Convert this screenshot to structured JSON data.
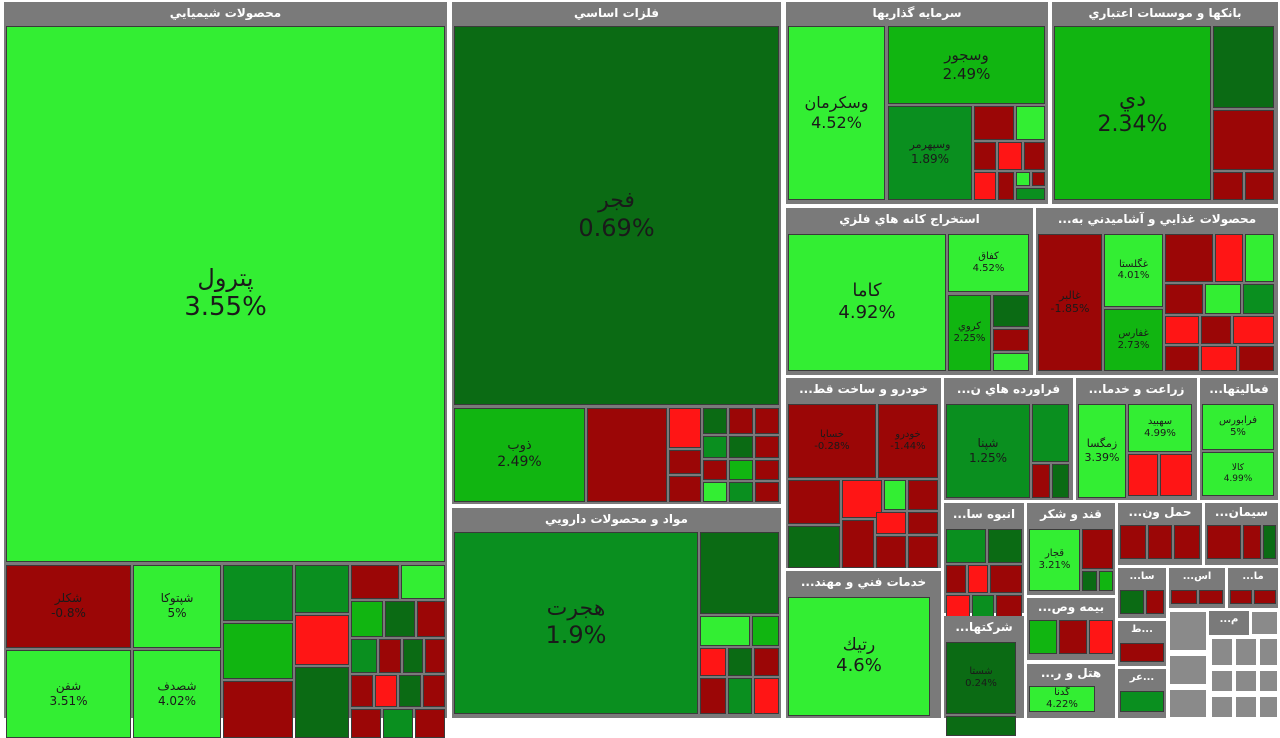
{
  "colors": {
    "strong_up": "#33ee33",
    "up": "#11b511",
    "mild_up": "#0a8f1f",
    "flat_up": "#0b6b14",
    "down": "#9b0606",
    "strong_down": "#ff1515",
    "sector_header": "#7a7a7a"
  },
  "chart_data": {
    "type": "treemap",
    "metric": "percent change",
    "sectors": [
      {
        "id": "s1",
        "name": "محصولات شيميايي",
        "stocks": [
          {
            "symbol": "پترول",
            "change": 3.55
          },
          {
            "symbol": "شكلر",
            "change": -0.8
          },
          {
            "symbol": "شپتوكا",
            "change": 5
          },
          {
            "symbol": "شفن",
            "change": 3.51
          },
          {
            "symbol": "شصدف",
            "change": 4.02
          }
        ]
      },
      {
        "id": "s2",
        "name": "فلزات اساسي",
        "stocks": [
          {
            "symbol": "فجر",
            "change": 0.69
          },
          {
            "symbol": "ذوب",
            "change": 2.49
          }
        ]
      },
      {
        "id": "s3",
        "name": "مواد و محصولات دارويي",
        "stocks": [
          {
            "symbol": "هجرت",
            "change": 1.9
          }
        ]
      },
      {
        "id": "s4",
        "name": "سرمايه گذاريها",
        "stocks": [
          {
            "symbol": "وسكرمان",
            "change": 4.52
          },
          {
            "symbol": "وسجور",
            "change": 2.49
          },
          {
            "symbol": "وسپهرمر",
            "change": 1.89
          }
        ]
      },
      {
        "id": "s5",
        "name": "بانكها و موسسات اعتباري",
        "stocks": [
          {
            "symbol": "دي",
            "change": 2.34
          }
        ]
      },
      {
        "id": "s6",
        "name": "استخراج كانه هاي فلزي",
        "stocks": [
          {
            "symbol": "كاما",
            "change": 4.92
          },
          {
            "symbol": "كفاق",
            "change": 4.52
          },
          {
            "symbol": "كروي",
            "change": 2.25
          }
        ]
      },
      {
        "id": "s7",
        "name": "محصولات غذايي و آشاميدني به...",
        "stocks": [
          {
            "symbol": "غالبر",
            "change": -1.85
          },
          {
            "symbol": "غگلستا",
            "change": 4.01
          },
          {
            "symbol": "غفارس",
            "change": 2.73
          }
        ]
      },
      {
        "id": "s8",
        "name": "خودرو و ساخت قط...",
        "stocks": [
          {
            "symbol": "خساپا",
            "change": -0.28
          },
          {
            "symbol": "خودرو",
            "change": -1.44
          }
        ]
      },
      {
        "id": "s9",
        "name": "فراورده هاي ن...",
        "stocks": [
          {
            "symbol": "شپنا",
            "change": 1.25
          }
        ]
      },
      {
        "id": "s10",
        "name": "زراعت و خدما...",
        "stocks": [
          {
            "symbol": "زمگسا",
            "change": 3.39
          },
          {
            "symbol": "سهبيد",
            "change": 4.99
          }
        ]
      },
      {
        "id": "s11",
        "name": "فعاليتها...",
        "stocks": [
          {
            "symbol": "فرابورس",
            "change": 5
          },
          {
            "symbol": "كالا",
            "change": 4.99
          }
        ]
      },
      {
        "id": "s12",
        "name": "انبوه سا...",
        "stocks": []
      },
      {
        "id": "s13",
        "name": "قند و شكر",
        "stocks": [
          {
            "symbol": "قجار",
            "change": 3.21
          }
        ]
      },
      {
        "id": "s14",
        "name": "حمل ون...",
        "stocks": []
      },
      {
        "id": "s15",
        "name": "سيمان...",
        "stocks": []
      },
      {
        "id": "s16",
        "name": "خدمات فني و مهند...",
        "stocks": [
          {
            "symbol": "رتيك",
            "change": 4.6
          }
        ]
      },
      {
        "id": "s17",
        "name": "شركتها...",
        "stocks": [
          {
            "symbol": "شستا",
            "change": 0.24
          }
        ]
      },
      {
        "id": "s18",
        "name": "بيمه وص...",
        "stocks": []
      },
      {
        "id": "s19",
        "name": "هتل و ر...",
        "stocks": [
          {
            "symbol": "گدنا",
            "change": 4.22
          }
        ]
      },
      {
        "id": "s20",
        "name": "سا...",
        "stocks": []
      },
      {
        "id": "s21",
        "name": "اس...",
        "stocks": []
      },
      {
        "id": "s22",
        "name": "ما...",
        "stocks": []
      },
      {
        "id": "s23",
        "name": "م...",
        "stocks": []
      },
      {
        "id": "s24",
        "name": "...ط",
        "stocks": []
      },
      {
        "id": "s25",
        "name": "...عر",
        "stocks": []
      }
    ]
  }
}
